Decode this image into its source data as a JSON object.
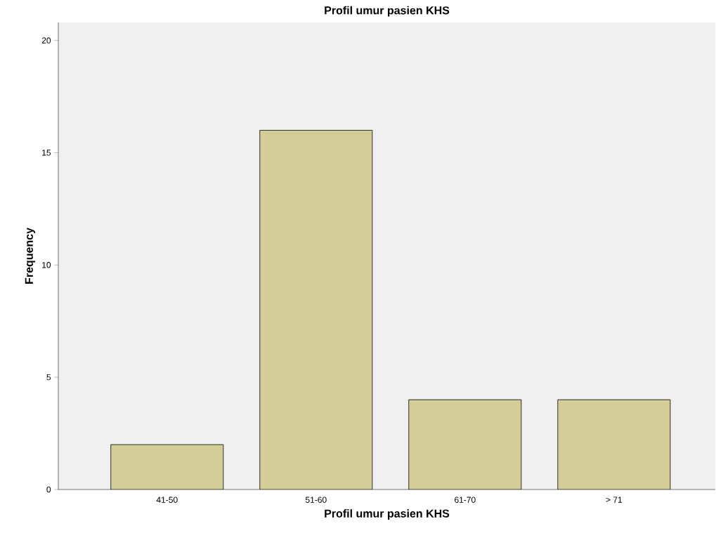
{
  "chart_data": {
    "type": "bar",
    "title": "Profil umur pasien KHS",
    "xlabel": "Profil umur pasien KHS",
    "ylabel": "Frequency",
    "categories": [
      "41-50",
      "51-60",
      "61-70",
      "> 71"
    ],
    "values": [
      2,
      16,
      4,
      4
    ],
    "color": "#d3ce97",
    "ylim": [
      0,
      20.8
    ],
    "yticks": [
      0,
      5,
      10,
      15,
      20
    ]
  }
}
